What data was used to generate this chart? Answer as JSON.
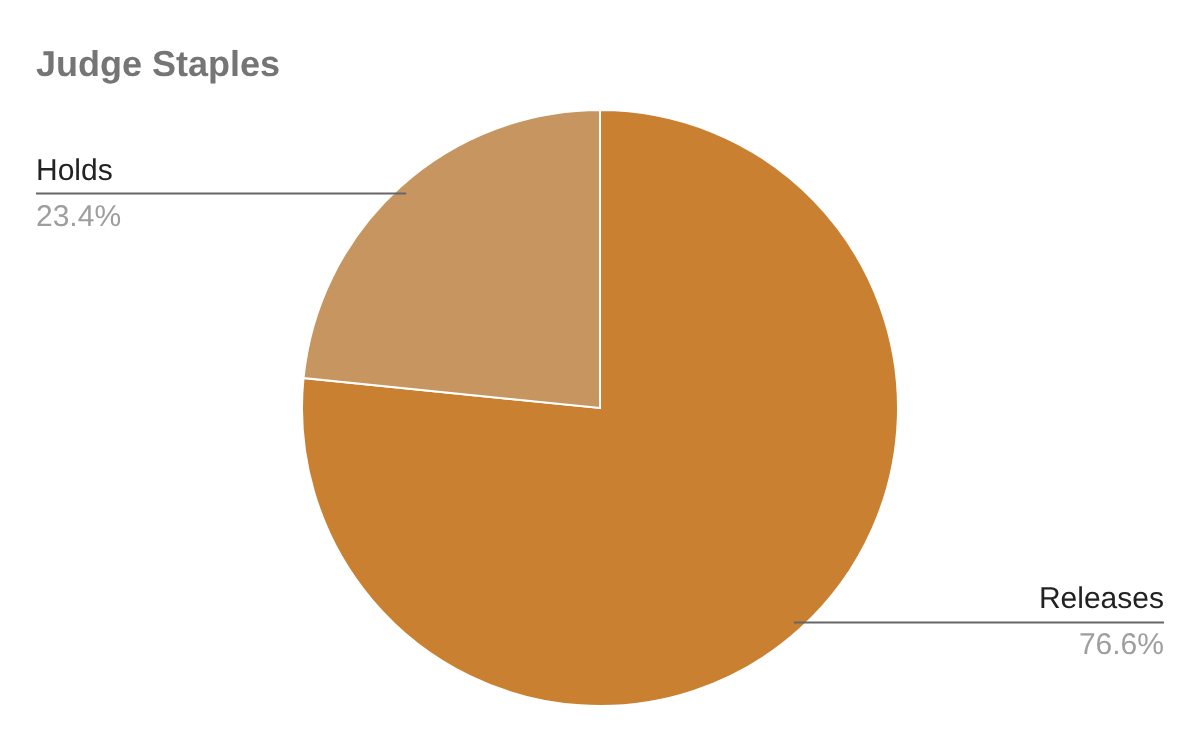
{
  "chart_data": {
    "type": "pie",
    "title": "Judge Staples",
    "categories": [
      "Releases",
      "Holds"
    ],
    "values": [
      76.6,
      23.4
    ],
    "colors": [
      "#c98030",
      "#c79560"
    ],
    "value_labels": [
      "76.6%",
      "23.4%"
    ]
  }
}
